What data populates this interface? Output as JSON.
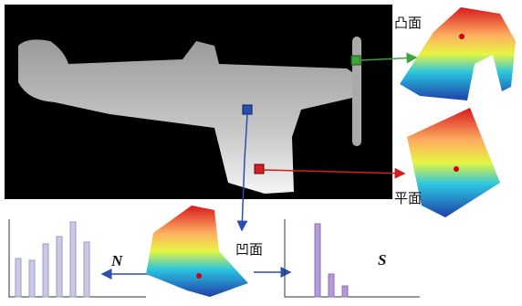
{
  "labels": {
    "convex": "凸面",
    "flat": "平面",
    "concave": "凹面",
    "normal": "N",
    "shape": "S"
  },
  "histograms": [
    {
      "values": [
        42,
        40,
        58,
        66,
        82,
        60
      ]
    },
    {
      "values": [
        80,
        25,
        12
      ]
    }
  ]
}
